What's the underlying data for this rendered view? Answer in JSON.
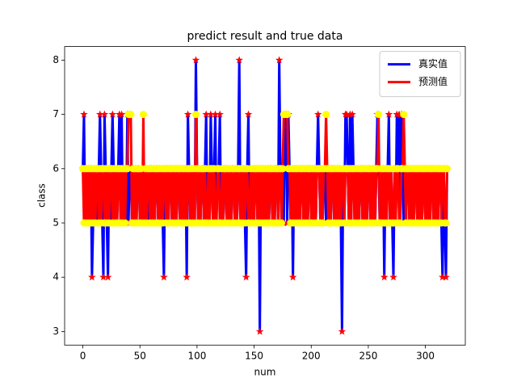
{
  "chart_data": {
    "type": "line",
    "title": "predict result and true data",
    "xlabel": "num",
    "ylabel": "class",
    "xlim": [
      -15.95,
      334.95
    ],
    "ylim": [
      2.75,
      8.25
    ],
    "xticks": [
      0,
      50,
      100,
      150,
      200,
      250,
      300
    ],
    "yticks": [
      3,
      4,
      5,
      6,
      7,
      8
    ],
    "legend": "upper right",
    "x": [
      0,
      1,
      2,
      3,
      4,
      5,
      6,
      7,
      8,
      9,
      10,
      11,
      12,
      13,
      14,
      15,
      16,
      17,
      18,
      19,
      20,
      21,
      22,
      23,
      24,
      25,
      26,
      27,
      28,
      29,
      30,
      31,
      32,
      33,
      34,
      35,
      36,
      37,
      38,
      39,
      40,
      41,
      42,
      43,
      44,
      45,
      46,
      47,
      48,
      49,
      50,
      51,
      52,
      53,
      54,
      55,
      56,
      57,
      58,
      59,
      60,
      61,
      62,
      63,
      64,
      65,
      66,
      67,
      68,
      69,
      70,
      71,
      72,
      73,
      74,
      75,
      76,
      77,
      78,
      79,
      80,
      81,
      82,
      83,
      84,
      85,
      86,
      87,
      88,
      89,
      90,
      91,
      92,
      93,
      94,
      95,
      96,
      97,
      98,
      99,
      100,
      101,
      102,
      103,
      104,
      105,
      106,
      107,
      108,
      109,
      110,
      111,
      112,
      113,
      114,
      115,
      116,
      117,
      118,
      119,
      120,
      121,
      122,
      123,
      124,
      125,
      126,
      127,
      128,
      129,
      130,
      131,
      132,
      133,
      134,
      135,
      136,
      137,
      138,
      139,
      140,
      141,
      142,
      143,
      144,
      145,
      146,
      147,
      148,
      149,
      150,
      151,
      152,
      153,
      154,
      155,
      156,
      157,
      158,
      159,
      160,
      161,
      162,
      163,
      164,
      165,
      166,
      167,
      168,
      169,
      170,
      171,
      172,
      173,
      174,
      175,
      176,
      177,
      178,
      179,
      180,
      181,
      182,
      183,
      184,
      185,
      186,
      187,
      188,
      189,
      190,
      191,
      192,
      193,
      194,
      195,
      196,
      197,
      198,
      199,
      200,
      201,
      202,
      203,
      204,
      205,
      206,
      207,
      208,
      209,
      210,
      211,
      212,
      213,
      214,
      215,
      216,
      217,
      218,
      219,
      220,
      221,
      222,
      223,
      224,
      225,
      226,
      227,
      228,
      229,
      230,
      231,
      232,
      233,
      234,
      235,
      236,
      237,
      238,
      239,
      240,
      241,
      242,
      243,
      244,
      245,
      246,
      247,
      248,
      249,
      250,
      251,
      252,
      253,
      254,
      255,
      256,
      257,
      258,
      259,
      260,
      261,
      262,
      263,
      264,
      265,
      266,
      267,
      268,
      269,
      270,
      271,
      272,
      273,
      274,
      275,
      276,
      277,
      278,
      279,
      280,
      281,
      282,
      283,
      284,
      285,
      286,
      287,
      288,
      289,
      290,
      291,
      292,
      293,
      294,
      295,
      296,
      297,
      298,
      299,
      300,
      301,
      302,
      303,
      304,
      305,
      306,
      307,
      308,
      309,
      310,
      311,
      312,
      313,
      314,
      315,
      316,
      317,
      318,
      319
    ],
    "series": [
      {
        "name": "真实值",
        "color": "blue",
        "marker": "star",
        "marker_color": "red",
        "values": [
          6,
          7,
          5,
          6,
          5,
          6,
          5,
          6,
          4,
          5,
          6,
          5,
          6,
          5,
          6,
          7,
          6,
          5,
          4,
          7,
          6,
          5,
          4,
          6,
          5,
          6,
          7,
          6,
          5,
          6,
          5,
          6,
          7,
          6,
          7,
          5,
          6,
          6,
          5,
          7,
          5,
          6,
          6,
          5,
          6,
          5,
          6,
          5,
          6,
          6,
          5,
          5,
          6,
          6,
          5,
          6,
          5,
          6,
          5,
          6,
          6,
          5,
          6,
          5,
          6,
          6,
          5,
          6,
          5,
          6,
          5,
          4,
          6,
          5,
          6,
          5,
          6,
          6,
          5,
          6,
          5,
          6,
          5,
          6,
          6,
          5,
          6,
          5,
          6,
          5,
          6,
          4,
          7,
          6,
          5,
          6,
          5,
          6,
          5,
          8,
          6,
          5,
          6,
          5,
          6,
          6,
          5,
          6,
          7,
          5,
          6,
          5,
          7,
          6,
          5,
          6,
          7,
          5,
          6,
          6,
          7,
          5,
          6,
          5,
          6,
          6,
          5,
          6,
          5,
          6,
          5,
          6,
          6,
          5,
          6,
          5,
          6,
          8,
          5,
          6,
          5,
          6,
          5,
          4,
          6,
          7,
          5,
          6,
          5,
          6,
          5,
          6,
          6,
          5,
          6,
          3,
          6,
          5,
          6,
          5,
          6,
          5,
          6,
          5,
          6,
          6,
          5,
          6,
          5,
          6,
          6,
          5,
          8,
          6,
          5,
          6,
          5,
          7,
          7,
          5,
          7,
          6,
          5,
          6,
          4,
          6,
          5,
          6,
          5,
          6,
          5,
          6,
          6,
          5,
          6,
          5,
          6,
          5,
          6,
          6,
          5,
          6,
          5,
          6,
          5,
          6,
          7,
          6,
          5,
          6,
          5,
          6,
          6,
          5,
          6,
          5,
          6,
          5,
          6,
          6,
          5,
          6,
          5,
          6,
          5,
          6,
          5,
          3,
          6,
          5,
          7,
          7,
          6,
          5,
          7,
          5,
          7,
          6,
          5,
          6,
          5,
          6,
          5,
          6,
          6,
          5,
          6,
          5,
          6,
          5,
          6,
          6,
          5,
          6,
          5,
          6,
          5,
          6,
          7,
          6,
          5,
          6,
          5,
          6,
          4,
          6,
          5,
          6,
          7,
          5,
          6,
          5,
          4,
          6,
          5,
          7,
          6,
          7,
          5,
          7,
          6,
          5,
          6,
          5,
          6,
          6,
          5,
          6,
          5,
          6,
          5,
          6,
          6,
          5,
          6,
          5,
          6,
          5,
          6,
          6,
          5,
          6,
          5,
          6,
          5,
          6,
          6,
          5,
          6,
          5,
          6,
          5,
          6,
          6,
          5,
          4,
          6,
          5,
          4,
          6
        ]
      },
      {
        "name": "预测值",
        "color": "red",
        "marker": "circle",
        "marker_color": "yellow",
        "values": [
          6,
          5,
          6,
          5,
          6,
          5,
          6,
          5,
          6,
          5,
          6,
          5,
          6,
          6,
          5,
          6,
          5,
          6,
          6,
          5,
          6,
          5,
          6,
          5,
          6,
          6,
          5,
          6,
          5,
          6,
          5,
          6,
          6,
          5,
          6,
          5,
          6,
          5,
          6,
          6,
          7,
          7,
          7,
          5,
          6,
          5,
          6,
          5,
          6,
          6,
          5,
          6,
          5,
          7,
          5,
          6,
          5,
          6,
          6,
          5,
          6,
          5,
          6,
          5,
          6,
          6,
          5,
          6,
          5,
          6,
          5,
          6,
          6,
          5,
          6,
          5,
          6,
          6,
          5,
          6,
          5,
          6,
          5,
          6,
          6,
          5,
          6,
          5,
          6,
          5,
          6,
          5,
          6,
          6,
          5,
          6,
          5,
          6,
          5,
          7,
          6,
          5,
          6,
          5,
          6,
          6,
          5,
          6,
          5,
          5,
          6,
          5,
          6,
          6,
          5,
          6,
          5,
          5,
          6,
          6,
          5,
          5,
          6,
          5,
          6,
          6,
          5,
          6,
          5,
          6,
          5,
          6,
          6,
          5,
          6,
          5,
          6,
          6,
          5,
          6,
          5,
          6,
          5,
          6,
          6,
          5,
          5,
          6,
          5,
          6,
          5,
          6,
          6,
          5,
          6,
          5,
          6,
          5,
          6,
          5,
          6,
          5,
          6,
          5,
          6,
          6,
          5,
          6,
          5,
          6,
          6,
          5,
          6,
          6,
          5,
          6,
          7,
          7,
          7,
          7,
          6,
          6,
          5,
          6,
          5,
          6,
          5,
          6,
          5,
          6,
          5,
          6,
          6,
          5,
          6,
          5,
          6,
          5,
          6,
          6,
          5,
          6,
          5,
          6,
          5,
          6,
          6,
          6,
          5,
          6,
          5,
          6,
          6,
          7,
          6,
          5,
          6,
          5,
          6,
          6,
          5,
          6,
          5,
          6,
          5,
          6,
          5,
          6,
          6,
          5,
          6,
          6,
          6,
          5,
          6,
          5,
          6,
          6,
          5,
          6,
          5,
          6,
          5,
          6,
          6,
          5,
          6,
          5,
          6,
          5,
          6,
          6,
          5,
          6,
          5,
          6,
          5,
          6,
          6,
          7,
          5,
          6,
          5,
          6,
          5,
          6,
          5,
          6,
          6,
          5,
          6,
          5,
          5,
          6,
          5,
          6,
          6,
          5,
          5,
          6,
          6,
          7,
          6,
          5,
          6,
          6,
          5,
          6,
          5,
          6,
          5,
          6,
          6,
          5,
          6,
          5,
          6,
          5,
          6,
          6,
          5,
          6,
          5,
          6,
          5,
          6,
          6,
          5,
          6,
          5,
          6,
          5,
          6,
          6,
          5,
          6,
          6,
          5,
          5,
          6
        ]
      }
    ]
  }
}
